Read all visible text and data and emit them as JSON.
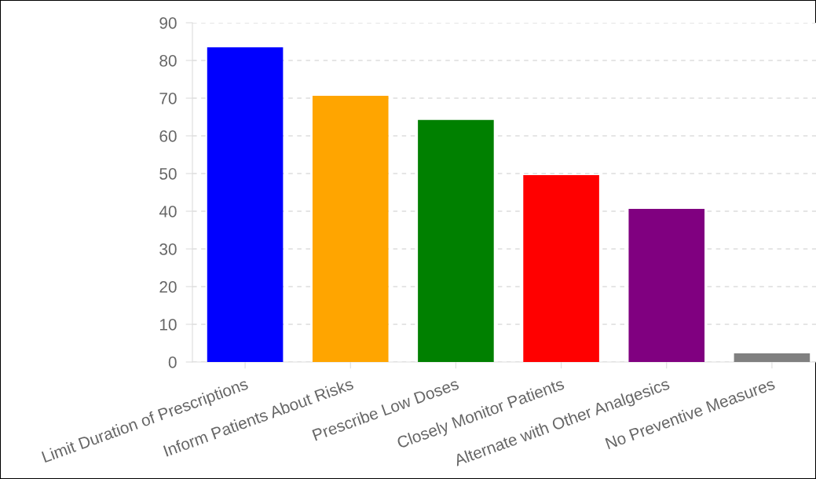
{
  "chart_data": {
    "type": "bar",
    "categories": [
      "Limit Duration of Prescriptions",
      "Inform Patients About Risks",
      "Prescribe Low Doses",
      "Closely Monitor Patients",
      "Alternate with Other Analgesics",
      "No Preventive Measures"
    ],
    "values": [
      83.5,
      70.6,
      64.2,
      49.6,
      40.6,
      2.3
    ],
    "colors": [
      "#0000ff",
      "#ffa500",
      "#008000",
      "#ff0000",
      "#800080",
      "#808080"
    ],
    "ylim": [
      0,
      90
    ],
    "yticks": [
      0,
      10,
      20,
      30,
      40,
      50,
      60,
      70,
      80,
      90
    ],
    "grid": "y",
    "legend": false
  }
}
